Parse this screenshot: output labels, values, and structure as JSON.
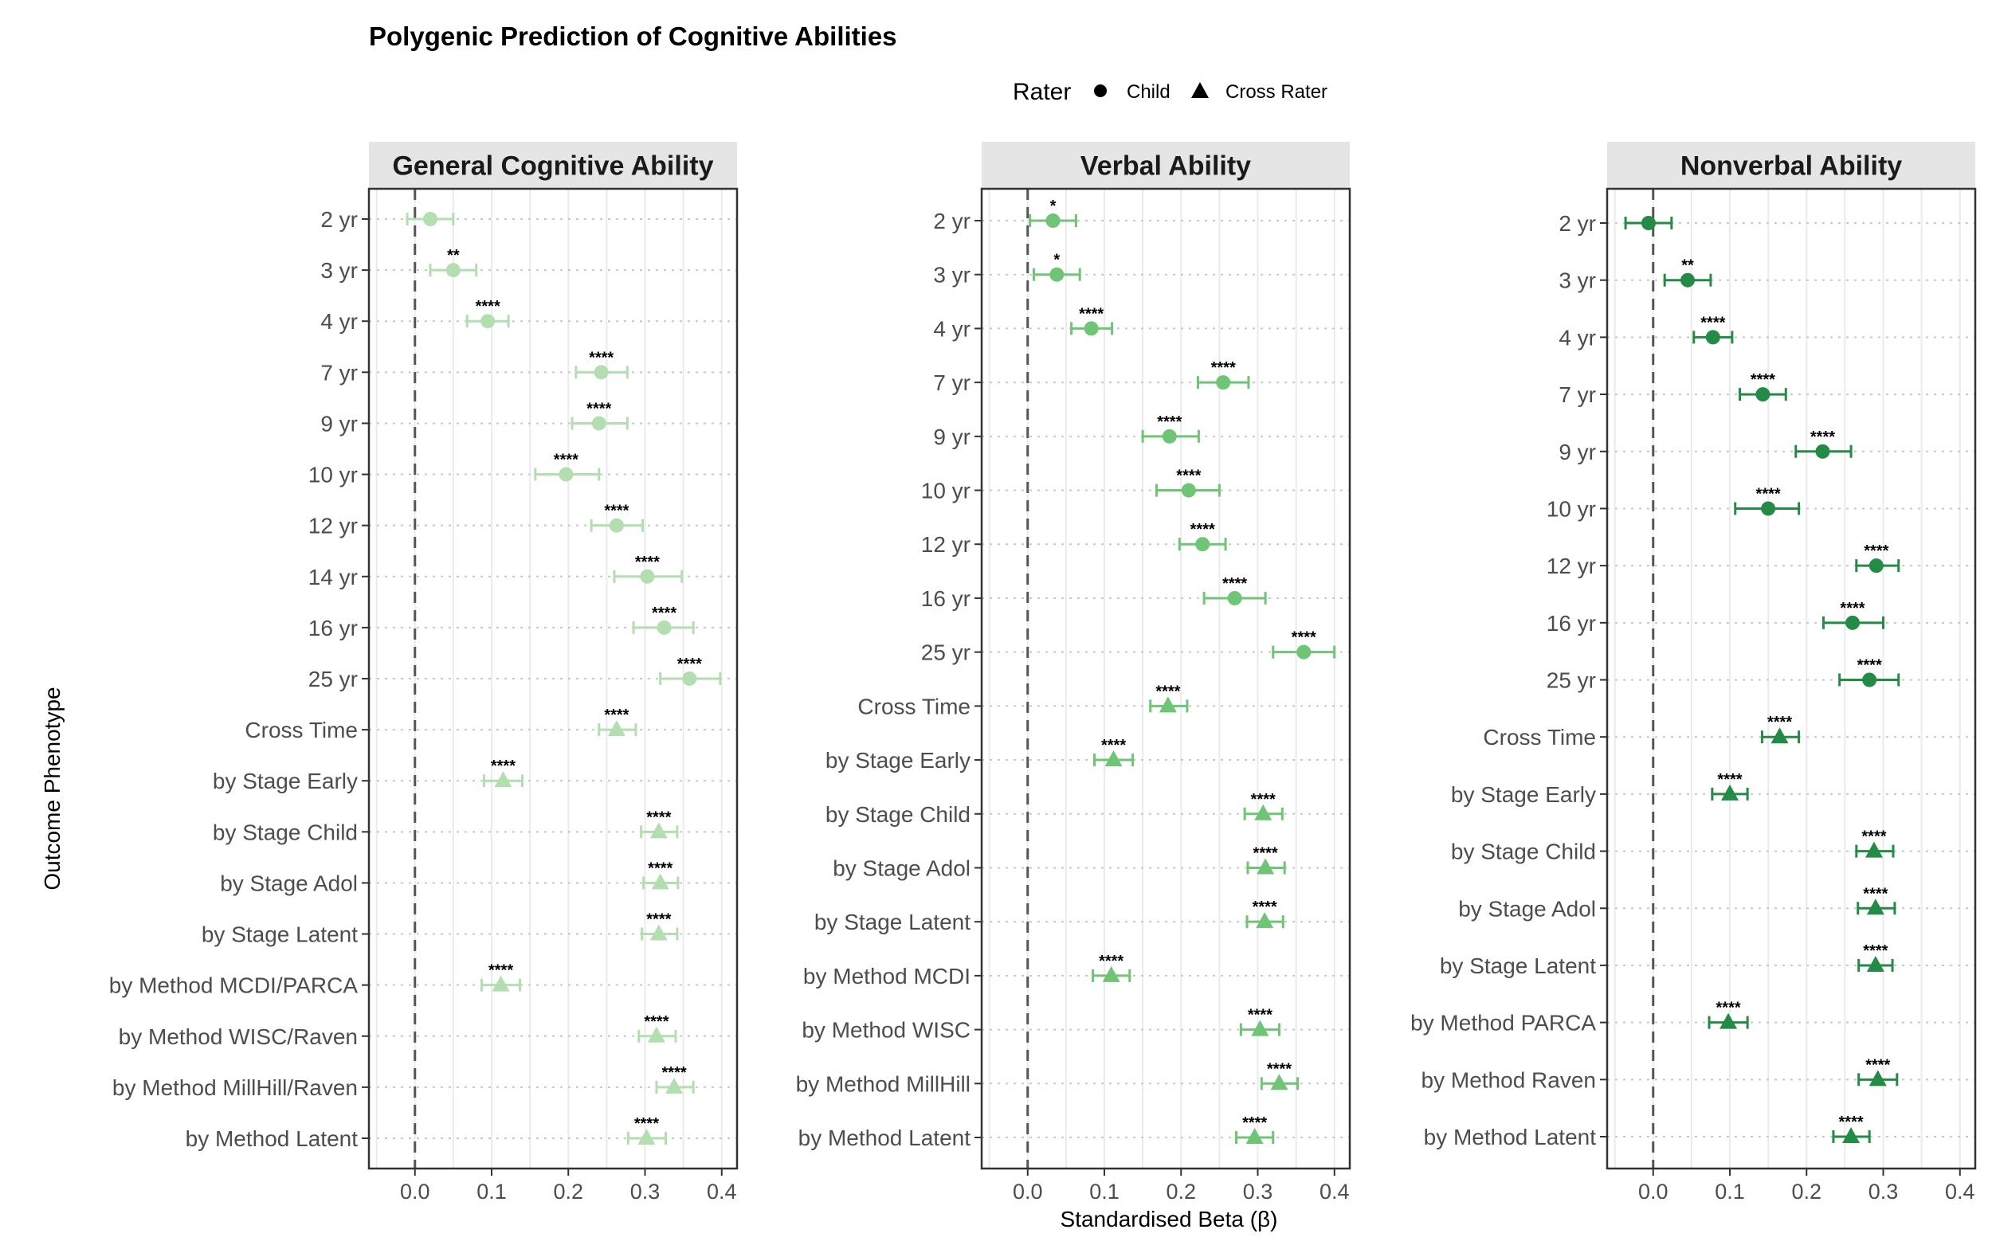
{
  "chart_data": {
    "type": "scatter",
    "title": "Polygenic Prediction of Cognitive Abilities",
    "xlabel": "Standardised Beta (β)",
    "ylabel": "Outcome Phenotype",
    "xlim": [
      -0.06,
      0.42
    ],
    "xticks": [
      "0.0",
      "0.1",
      "0.2",
      "0.3",
      "0.4"
    ],
    "legend": {
      "title": "Rater",
      "placement": "top",
      "entries": [
        {
          "label": "Child",
          "shape": "circle"
        },
        {
          "label": "Cross Rater",
          "shape": "triangle"
        }
      ]
    },
    "panels": [
      {
        "title": "General Cognitive Ability",
        "color": "#b3dfb0",
        "points": [
          {
            "label": "2 yr",
            "beta": 0.02,
            "lo": -0.01,
            "hi": 0.05,
            "sig": "",
            "rater": "Child"
          },
          {
            "label": "3 yr",
            "beta": 0.05,
            "lo": 0.02,
            "hi": 0.08,
            "sig": "**",
            "rater": "Child"
          },
          {
            "label": "4 yr",
            "beta": 0.095,
            "lo": 0.068,
            "hi": 0.122,
            "sig": "****",
            "rater": "Child"
          },
          {
            "label": "7 yr",
            "beta": 0.243,
            "lo": 0.21,
            "hi": 0.277,
            "sig": "****",
            "rater": "Child"
          },
          {
            "label": "9 yr",
            "beta": 0.24,
            "lo": 0.205,
            "hi": 0.277,
            "sig": "****",
            "rater": "Child"
          },
          {
            "label": "10 yr",
            "beta": 0.197,
            "lo": 0.157,
            "hi": 0.24,
            "sig": "****",
            "rater": "Child"
          },
          {
            "label": "12 yr",
            "beta": 0.263,
            "lo": 0.23,
            "hi": 0.297,
            "sig": "****",
            "rater": "Child"
          },
          {
            "label": "14 yr",
            "beta": 0.303,
            "lo": 0.26,
            "hi": 0.348,
            "sig": "****",
            "rater": "Child"
          },
          {
            "label": "16 yr",
            "beta": 0.325,
            "lo": 0.285,
            "hi": 0.363,
            "sig": "****",
            "rater": "Child"
          },
          {
            "label": "25 yr",
            "beta": 0.358,
            "lo": 0.32,
            "hi": 0.398,
            "sig": "****",
            "rater": "Child"
          },
          {
            "label": "Cross Time",
            "beta": 0.263,
            "lo": 0.24,
            "hi": 0.288,
            "sig": "****",
            "rater": "Cross Rater"
          },
          {
            "label": "by Stage Early",
            "beta": 0.115,
            "lo": 0.09,
            "hi": 0.14,
            "sig": "****",
            "rater": "Cross Rater"
          },
          {
            "label": "by Stage Child",
            "beta": 0.318,
            "lo": 0.295,
            "hi": 0.342,
            "sig": "****",
            "rater": "Cross Rater"
          },
          {
            "label": "by Stage Adol",
            "beta": 0.32,
            "lo": 0.298,
            "hi": 0.343,
            "sig": "****",
            "rater": "Cross Rater"
          },
          {
            "label": "by Stage Latent",
            "beta": 0.318,
            "lo": 0.296,
            "hi": 0.342,
            "sig": "****",
            "rater": "Cross Rater"
          },
          {
            "label": "by Method MCDI/PARCA",
            "beta": 0.112,
            "lo": 0.087,
            "hi": 0.137,
            "sig": "****",
            "rater": "Cross Rater"
          },
          {
            "label": "by Method WISC/Raven",
            "beta": 0.315,
            "lo": 0.292,
            "hi": 0.34,
            "sig": "****",
            "rater": "Cross Rater"
          },
          {
            "label": "by Method MillHill/Raven",
            "beta": 0.338,
            "lo": 0.315,
            "hi": 0.363,
            "sig": "****",
            "rater": "Cross Rater"
          },
          {
            "label": "by Method Latent",
            "beta": 0.302,
            "lo": 0.278,
            "hi": 0.327,
            "sig": "****",
            "rater": "Cross Rater"
          }
        ]
      },
      {
        "title": "Verbal Ability",
        "color": "#6fc475",
        "points": [
          {
            "label": "2 yr",
            "beta": 0.033,
            "lo": 0.003,
            "hi": 0.063,
            "sig": "*",
            "rater": "Child"
          },
          {
            "label": "3 yr",
            "beta": 0.038,
            "lo": 0.008,
            "hi": 0.068,
            "sig": "*",
            "rater": "Child"
          },
          {
            "label": "4 yr",
            "beta": 0.083,
            "lo": 0.057,
            "hi": 0.11,
            "sig": "****",
            "rater": "Child"
          },
          {
            "label": "7 yr",
            "beta": 0.255,
            "lo": 0.222,
            "hi": 0.288,
            "sig": "****",
            "rater": "Child"
          },
          {
            "label": "9 yr",
            "beta": 0.185,
            "lo": 0.15,
            "hi": 0.223,
            "sig": "****",
            "rater": "Child"
          },
          {
            "label": "10 yr",
            "beta": 0.21,
            "lo": 0.168,
            "hi": 0.25,
            "sig": "****",
            "rater": "Child"
          },
          {
            "label": "12 yr",
            "beta": 0.228,
            "lo": 0.198,
            "hi": 0.258,
            "sig": "****",
            "rater": "Child"
          },
          {
            "label": "16 yr",
            "beta": 0.27,
            "lo": 0.23,
            "hi": 0.31,
            "sig": "****",
            "rater": "Child"
          },
          {
            "label": "25 yr",
            "beta": 0.36,
            "lo": 0.32,
            "hi": 0.4,
            "sig": "****",
            "rater": "Child"
          },
          {
            "label": "Cross Time",
            "beta": 0.183,
            "lo": 0.16,
            "hi": 0.208,
            "sig": "****",
            "rater": "Cross Rater"
          },
          {
            "label": "by Stage Early",
            "beta": 0.112,
            "lo": 0.087,
            "hi": 0.137,
            "sig": "****",
            "rater": "Cross Rater"
          },
          {
            "label": "by Stage Child",
            "beta": 0.307,
            "lo": 0.283,
            "hi": 0.332,
            "sig": "****",
            "rater": "Cross Rater"
          },
          {
            "label": "by Stage Adol",
            "beta": 0.31,
            "lo": 0.287,
            "hi": 0.335,
            "sig": "****",
            "rater": "Cross Rater"
          },
          {
            "label": "by Stage Latent",
            "beta": 0.309,
            "lo": 0.286,
            "hi": 0.333,
            "sig": "****",
            "rater": "Cross Rater"
          },
          {
            "label": "by Method MCDI",
            "beta": 0.109,
            "lo": 0.085,
            "hi": 0.133,
            "sig": "****",
            "rater": "Cross Rater"
          },
          {
            "label": "by Method WISC",
            "beta": 0.303,
            "lo": 0.278,
            "hi": 0.328,
            "sig": "****",
            "rater": "Cross Rater"
          },
          {
            "label": "by Method MillHill",
            "beta": 0.328,
            "lo": 0.305,
            "hi": 0.352,
            "sig": "****",
            "rater": "Cross Rater"
          },
          {
            "label": "by Method Latent",
            "beta": 0.296,
            "lo": 0.272,
            "hi": 0.32,
            "sig": "****",
            "rater": "Cross Rater"
          }
        ]
      },
      {
        "title": "Nonverbal Ability",
        "color": "#238b45",
        "points": [
          {
            "label": "2 yr",
            "beta": -0.006,
            "lo": -0.036,
            "hi": 0.024,
            "sig": "",
            "rater": "Child"
          },
          {
            "label": "3 yr",
            "beta": 0.045,
            "lo": 0.015,
            "hi": 0.075,
            "sig": "**",
            "rater": "Child"
          },
          {
            "label": "4 yr",
            "beta": 0.078,
            "lo": 0.053,
            "hi": 0.103,
            "sig": "****",
            "rater": "Child"
          },
          {
            "label": "7 yr",
            "beta": 0.143,
            "lo": 0.113,
            "hi": 0.173,
            "sig": "****",
            "rater": "Child"
          },
          {
            "label": "9 yr",
            "beta": 0.221,
            "lo": 0.186,
            "hi": 0.258,
            "sig": "****",
            "rater": "Child"
          },
          {
            "label": "10 yr",
            "beta": 0.15,
            "lo": 0.107,
            "hi": 0.19,
            "sig": "****",
            "rater": "Child"
          },
          {
            "label": "12 yr",
            "beta": 0.291,
            "lo": 0.265,
            "hi": 0.32,
            "sig": "****",
            "rater": "Child"
          },
          {
            "label": "16 yr",
            "beta": 0.26,
            "lo": 0.222,
            "hi": 0.3,
            "sig": "****",
            "rater": "Child"
          },
          {
            "label": "25 yr",
            "beta": 0.282,
            "lo": 0.243,
            "hi": 0.32,
            "sig": "****",
            "rater": "Child"
          },
          {
            "label": "Cross Time",
            "beta": 0.165,
            "lo": 0.142,
            "hi": 0.19,
            "sig": "****",
            "rater": "Cross Rater"
          },
          {
            "label": "by Stage Early",
            "beta": 0.1,
            "lo": 0.077,
            "hi": 0.123,
            "sig": "****",
            "rater": "Cross Rater"
          },
          {
            "label": "by Stage Child",
            "beta": 0.288,
            "lo": 0.265,
            "hi": 0.313,
            "sig": "****",
            "rater": "Cross Rater"
          },
          {
            "label": "by Stage Adol",
            "beta": 0.29,
            "lo": 0.267,
            "hi": 0.315,
            "sig": "****",
            "rater": "Cross Rater"
          },
          {
            "label": "by Stage Latent",
            "beta": 0.29,
            "lo": 0.268,
            "hi": 0.312,
            "sig": "****",
            "rater": "Cross Rater"
          },
          {
            "label": "by Method PARCA",
            "beta": 0.098,
            "lo": 0.073,
            "hi": 0.123,
            "sig": "****",
            "rater": "Cross Rater"
          },
          {
            "label": "by Method Raven",
            "beta": 0.293,
            "lo": 0.268,
            "hi": 0.318,
            "sig": "****",
            "rater": "Cross Rater"
          },
          {
            "label": "by Method Latent",
            "beta": 0.258,
            "lo": 0.235,
            "hi": 0.282,
            "sig": "****",
            "rater": "Cross Rater"
          }
        ]
      }
    ]
  }
}
